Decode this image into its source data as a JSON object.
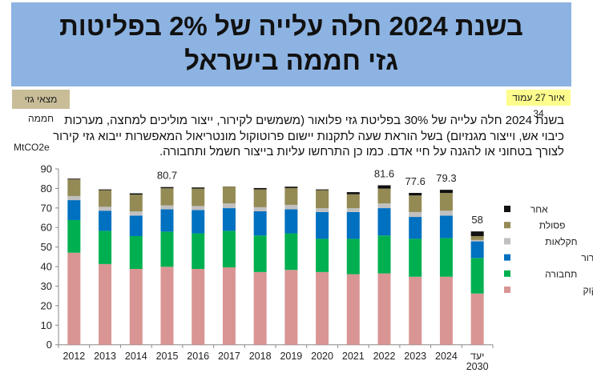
{
  "header": {
    "title_line1": "בשנת 2024 חלה עלייה של 2% בפליטות",
    "title_line2": "גזי חממה בישראל"
  },
  "tags": {
    "left": "מצאי גזי חממה",
    "right": "איור 27 עמוד 34"
  },
  "paragraph": "בשנת 2024 חלה עלייה של 30% בפליטת גזי פלואור (משמשים לקירור, ייצור מוליכים למחצה, מערכות כיבוי אש, וייצור מגנזיום) בשל הוראת שעה לתקנות יישום פרוטוקול מונטריאול המאפשרות ייבוא גזי קירור לצורך בטחוני או להגנה על חיי אדם. כמו כן התרחשו עליות בייצור חשמל ותחבורה.",
  "chart_data": {
    "type": "bar",
    "stacked": true,
    "ylabel": "MtCO2e",
    "ylim": [
      0,
      90
    ],
    "yticks": [
      "0",
      "10",
      "20",
      "30",
      "40",
      "50",
      "60",
      "70",
      "80",
      "90"
    ],
    "categories": [
      "2012",
      "2013",
      "2014",
      "2015",
      "2016",
      "2017",
      "2018",
      "2019",
      "2020",
      "2021",
      "2022",
      "2023",
      "2024",
      "יעד 2030"
    ],
    "legend_position": "right",
    "series": [
      {
        "name": "ייצור חשמל וזיקוק",
        "color": "#d99594",
        "values": [
          47.1,
          41.3,
          38.8,
          39.9,
          38.8,
          39.6,
          37.2,
          38.3,
          37.2,
          36.1,
          36.5,
          34.8,
          34.8,
          26.2
        ]
      },
      {
        "name": "תחבורה",
        "color": "#00b050",
        "values": [
          16.7,
          17.0,
          16.8,
          18.0,
          18.2,
          18.7,
          18.7,
          18.7,
          17.0,
          18.1,
          19.4,
          19.4,
          19.8,
          18.2
        ]
      },
      {
        "name": "תעשייה וגזי קירור",
        "color": "#0070c0",
        "values": [
          10.2,
          10.3,
          10.5,
          11.4,
          11.9,
          11.6,
          12.4,
          12.3,
          13.7,
          13.7,
          14.0,
          11.2,
          11.5,
          8.5
        ]
      },
      {
        "name": "חקלאות",
        "color": "#c0c0c0",
        "values": [
          2.1,
          2.0,
          2.1,
          2.0,
          2.1,
          2.4,
          2.1,
          2.3,
          2.0,
          2.0,
          2.4,
          2.5,
          2.5,
          0.7
        ]
      },
      {
        "name": "פסולת",
        "color": "#948a54",
        "values": [
          8.5,
          8.5,
          8.6,
          8.8,
          8.9,
          8.6,
          9.1,
          8.6,
          9.2,
          7.1,
          7.6,
          8.5,
          9.1,
          2.0
        ]
      },
      {
        "name": "אחר",
        "color": "#111111",
        "values": [
          0.4,
          0.4,
          0.7,
          0.6,
          0.6,
          0.1,
          0.7,
          0.7,
          0.4,
          1.1,
          1.7,
          1.3,
          1.6,
          2.4
        ]
      }
    ],
    "data_labels": [
      {
        "category": "2015",
        "text": "80.7"
      },
      {
        "category": "2022",
        "text": "81.6"
      },
      {
        "category": "2023",
        "text": "77.6"
      },
      {
        "category": "2024",
        "text": "79.3"
      },
      {
        "category": "יעד 2030",
        "text": "58"
      }
    ]
  }
}
